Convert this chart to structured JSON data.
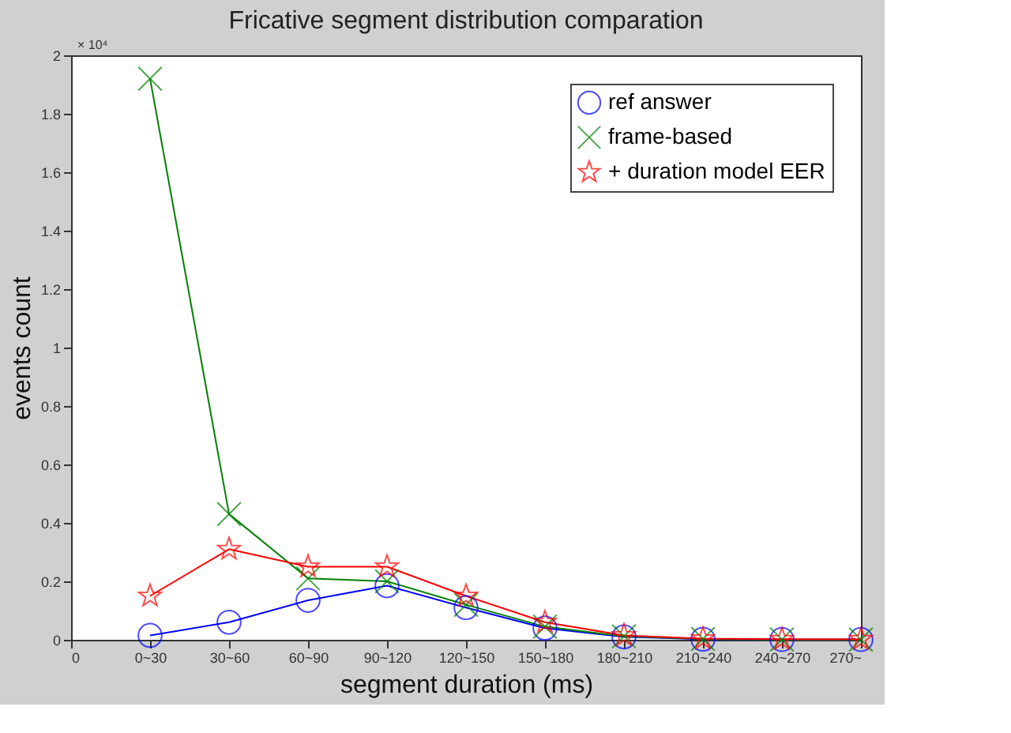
{
  "chart_data": {
    "type": "line",
    "title": "Fricative segment distribution comparation",
    "xlabel": "segment duration (ms)",
    "ylabel": "events count",
    "annotations": [
      "× 10⁴"
    ],
    "categories": [
      "0",
      "0~30",
      "30~60",
      "60~90",
      "90~120",
      "120~150",
      "150~180",
      "180~210",
      "210~240",
      "240~270",
      "270~"
    ],
    "ylim": [
      0,
      2
    ],
    "yticks": [
      0,
      0.2,
      0.4,
      0.6,
      0.8,
      1,
      1.2,
      1.4,
      1.6,
      1.8,
      2
    ],
    "grid": false,
    "legend": "top right",
    "series": [
      {
        "name": "ref answer",
        "color": "#0000ff",
        "marker": "circle",
        "values": [
          null,
          0.015,
          0.06,
          0.135,
          0.185,
          0.11,
          0.04,
          0.01,
          0.002,
          0.001,
          0.001
        ]
      },
      {
        "name": "frame-based",
        "color": "#008000",
        "marker": "cross",
        "values": [
          null,
          1.92,
          0.43,
          0.21,
          0.2,
          0.12,
          0.045,
          0.012,
          0.003,
          0.001,
          0.001
        ]
      },
      {
        "name": "+ duration model EER",
        "color": "#ff0000",
        "marker": "star",
        "values": [
          null,
          0.15,
          0.31,
          0.25,
          0.25,
          0.15,
          0.06,
          0.015,
          0.004,
          0.002,
          0.002
        ]
      }
    ]
  }
}
